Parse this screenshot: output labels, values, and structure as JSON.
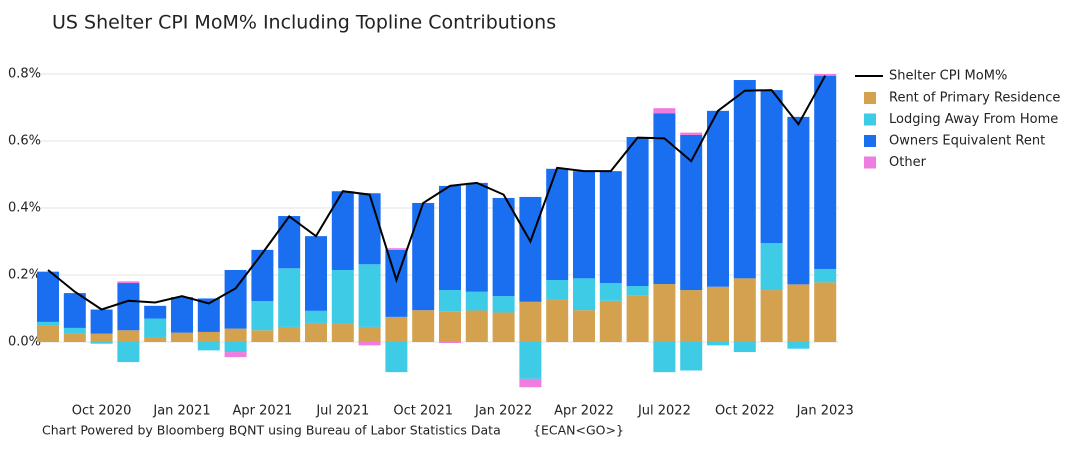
{
  "chart_data": {
    "type": "stacked-bar-line",
    "title": "US Shelter CPI MoM% Including Topline Contributions",
    "footer": "Chart Powered by Bloomberg BQNT using Bureau of Labor Statistics Data",
    "source_code": "{ECAN<GO>}",
    "categories": [
      null,
      null,
      "Oct 2020",
      null,
      null,
      "Jan 2021",
      null,
      null,
      "Apr 2021",
      null,
      null,
      "Jul 2021",
      null,
      null,
      "Oct 2021",
      null,
      null,
      "Jan 2022",
      null,
      null,
      "Apr 2022",
      null,
      null,
      "Jul 2022",
      null,
      null,
      "Oct 2022",
      null,
      null,
      "Jan 2023"
    ],
    "series": [
      {
        "name": "Rent of Primary Residence",
        "color": "#d4a24e",
        "values": [
          0.048,
          0.025,
          0.025,
          0.035,
          0.015,
          0.028,
          0.03,
          0.04,
          0.035,
          0.045,
          0.057,
          0.055,
          0.045,
          0.075,
          0.095,
          0.092,
          0.094,
          0.088,
          0.12,
          0.127,
          0.095,
          0.123,
          0.14,
          0.173,
          0.155,
          0.165,
          0.19,
          0.155,
          0.172,
          0.178
        ]
      },
      {
        "name": "Lodging Away From Home",
        "color": "#3ecbe6",
        "values": [
          0.012,
          0.017,
          -0.005,
          -0.06,
          0.055,
          0,
          -0.025,
          -0.03,
          0.087,
          0.175,
          0.036,
          0.16,
          0.187,
          -0.09,
          0,
          0.063,
          0.056,
          0.049,
          -0.11,
          0.058,
          0.095,
          0.053,
          0.027,
          -0.09,
          -0.085,
          -0.01,
          -0.03,
          0.14,
          -0.02,
          0.04
        ]
      },
      {
        "name": "Owners Equivalent Rent",
        "color": "#1a6ef0",
        "values": [
          0.15,
          0.104,
          0.072,
          0.141,
          0.038,
          0.106,
          0.1,
          0.175,
          0.153,
          0.156,
          0.223,
          0.235,
          0.212,
          0.2,
          0.32,
          0.311,
          0.325,
          0.293,
          0.313,
          0.332,
          0.32,
          0.334,
          0.445,
          0.51,
          0.463,
          0.525,
          0.592,
          0.457,
          0.5,
          0.577
        ]
      },
      {
        "name": "Other",
        "color": "#ef7de0",
        "values": [
          0,
          0,
          0,
          0.005,
          0,
          0,
          0,
          -0.015,
          0,
          0,
          0,
          0,
          -0.01,
          0.005,
          0,
          -0.003,
          0,
          0,
          -0.025,
          0,
          0,
          0,
          0,
          0.015,
          0.007,
          0,
          0,
          0,
          0,
          0.005
        ]
      }
    ],
    "line": {
      "name": "Shelter CPI MoM%",
      "color": "#000000",
      "values": [
        0.215,
        0.15,
        0.097,
        0.123,
        0.118,
        0.137,
        0.115,
        0.16,
        0.265,
        0.375,
        0.316,
        0.45,
        0.44,
        0.185,
        0.415,
        0.466,
        0.475,
        0.44,
        0.3,
        0.52,
        0.51,
        0.51,
        0.61,
        0.608,
        0.54,
        0.69,
        0.75,
        0.752,
        0.65,
        0.795
      ]
    },
    "ylim": [
      -0.16,
      0.86
    ],
    "yticks": [
      {
        "value": 0,
        "label": "0.0%"
      },
      {
        "value": 0.2,
        "label": "0.2%"
      },
      {
        "value": 0.4,
        "label": "0.4%"
      },
      {
        "value": 0.6,
        "label": "0.6%"
      },
      {
        "value": 0.8,
        "label": "0.8%"
      }
    ],
    "grid": true,
    "legend": "right"
  }
}
